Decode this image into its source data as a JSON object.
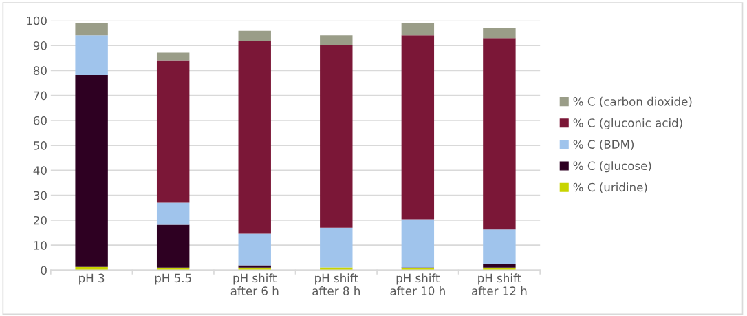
{
  "chart_data": {
    "type": "bar",
    "stacked": true,
    "categories": [
      "pH 3",
      "pH 5.5",
      "pH shift\nafter 6 h",
      "pH shift\nafter 8 h",
      "pH shift\nafter 10 h",
      "pH shift\nafter 12 h"
    ],
    "series": [
      {
        "name": "% C (uridine)",
        "color": "#c8d400",
        "values": [
          1.3,
          1.0,
          1.0,
          1.1,
          0.7,
          1.0
        ]
      },
      {
        "name": "% C (glucose)",
        "color": "#2e0022",
        "values": [
          76.9,
          17.2,
          0.9,
          0,
          0.4,
          1.5
        ]
      },
      {
        "name": "% C (BDM)",
        "color": "#a0c4ec",
        "values": [
          15.9,
          8.8,
          12.7,
          15.9,
          19.3,
          13.8
        ]
      },
      {
        "name": "% C (gluconic acid)",
        "color": "#7b1737",
        "values": [
          0,
          57.1,
          77.3,
          73.0,
          73.7,
          76.7
        ]
      },
      {
        "name": "% C (carbon dioxide)",
        "color": "#9a9d88",
        "values": [
          4.9,
          3.0,
          4.0,
          4.1,
          4.9,
          3.9
        ]
      }
    ],
    "ylim": [
      0,
      100
    ],
    "yticks": [
      0,
      10,
      20,
      30,
      40,
      50,
      60,
      70,
      80,
      90,
      100
    ],
    "grid": "y",
    "legend": "right"
  }
}
